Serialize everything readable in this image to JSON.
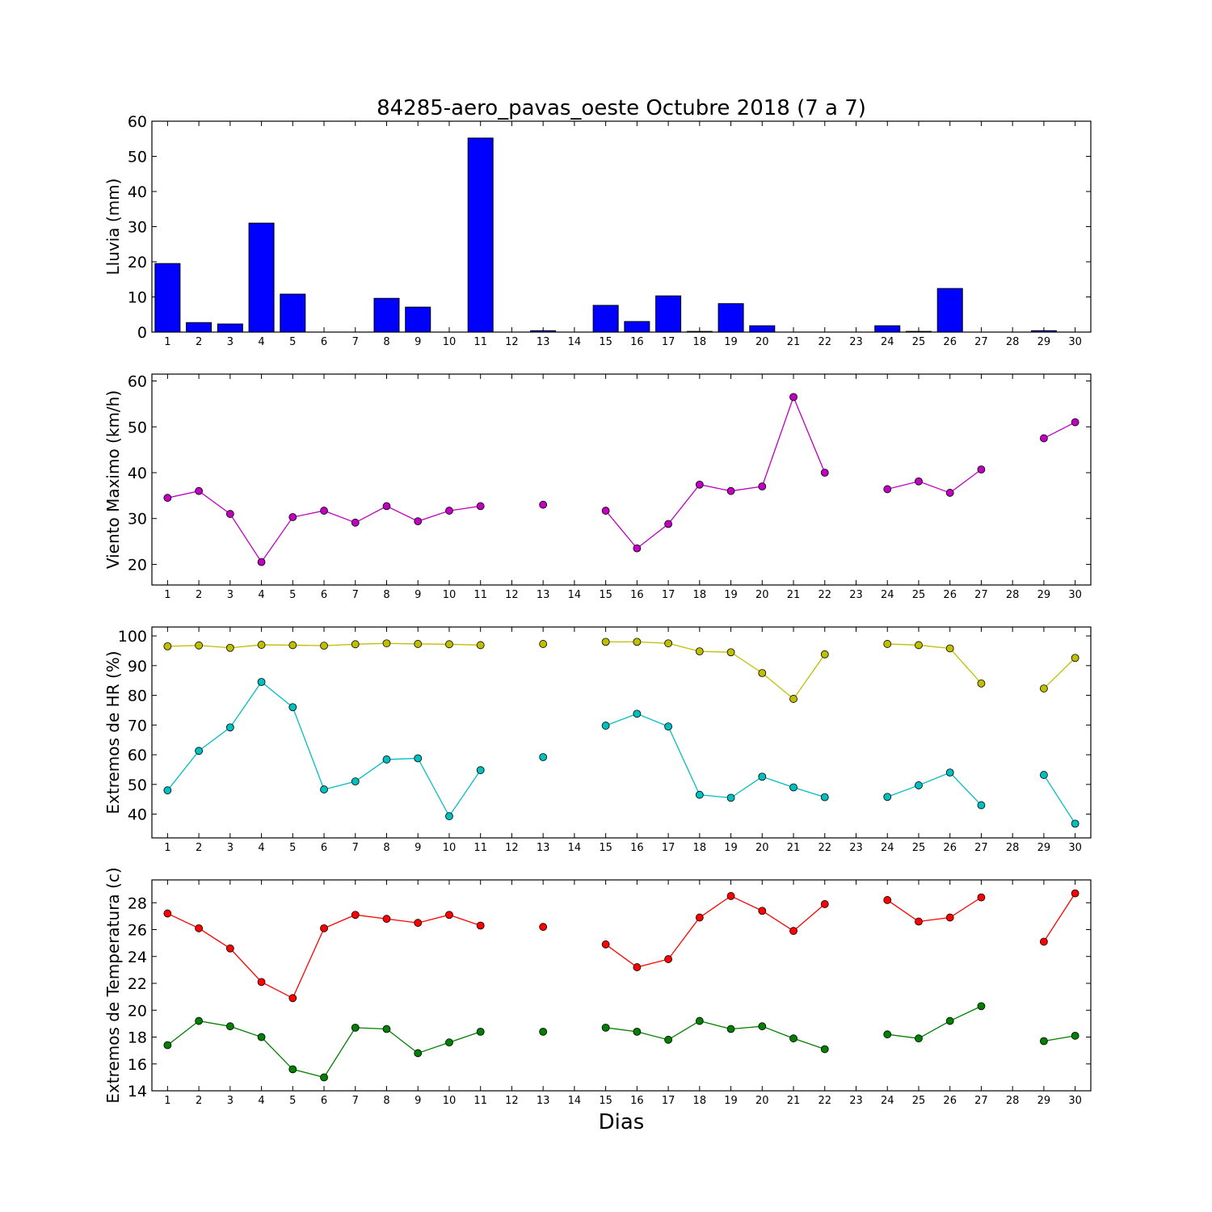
{
  "figure_title": "84285-aero_pavas_oeste Octubre 2018  (7 a 7)",
  "x_axis_label": "Dias",
  "chart_data": [
    {
      "type": "bar",
      "ylabel": "Lluvia (mm)",
      "ylim": [
        0,
        60
      ],
      "yticks": [
        0,
        10,
        20,
        30,
        40,
        50,
        60
      ],
      "x": [
        1,
        2,
        3,
        4,
        5,
        6,
        7,
        8,
        9,
        10,
        11,
        12,
        13,
        14,
        15,
        16,
        17,
        18,
        19,
        20,
        21,
        22,
        23,
        24,
        25,
        26,
        27,
        28,
        29,
        30
      ],
      "series": [
        {
          "color": "#0000ff",
          "values": [
            19.5,
            2.7,
            2.3,
            31.0,
            10.8,
            0,
            0,
            9.6,
            7.1,
            0,
            55.2,
            0,
            0.4,
            0,
            7.6,
            3.0,
            10.3,
            0.2,
            8.1,
            1.8,
            0,
            0,
            0,
            1.8,
            0.2,
            12.4,
            0,
            0,
            0.4,
            0
          ]
        }
      ]
    },
    {
      "type": "line",
      "ylabel": "Viento Maximo (km/h)",
      "ylim": [
        15.5,
        61.5
      ],
      "yticks": [
        20,
        30,
        40,
        50,
        60
      ],
      "x": [
        1,
        2,
        3,
        4,
        5,
        6,
        7,
        8,
        9,
        10,
        11,
        12,
        13,
        14,
        15,
        16,
        17,
        18,
        19,
        20,
        21,
        22,
        23,
        24,
        25,
        26,
        27,
        28,
        29,
        30
      ],
      "series": [
        {
          "color": "#bf00bf",
          "values": [
            34.5,
            36.0,
            31.0,
            20.5,
            30.3,
            31.7,
            29.1,
            32.7,
            29.4,
            31.7,
            32.7,
            null,
            33.0,
            null,
            31.7,
            23.5,
            28.8,
            37.4,
            36.0,
            37.0,
            56.5,
            40.0,
            null,
            36.4,
            38.1,
            35.6,
            40.7,
            null,
            47.5,
            51.0
          ]
        }
      ]
    },
    {
      "type": "line",
      "ylabel": "Extremos de HR (%)",
      "ylim": [
        32,
        103
      ],
      "yticks": [
        40,
        50,
        60,
        70,
        80,
        90,
        100
      ],
      "x": [
        1,
        2,
        3,
        4,
        5,
        6,
        7,
        8,
        9,
        10,
        11,
        12,
        13,
        14,
        15,
        16,
        17,
        18,
        19,
        20,
        21,
        22,
        23,
        24,
        25,
        26,
        27,
        28,
        29,
        30
      ],
      "series": [
        {
          "color": "#bfbf00",
          "values": [
            96.5,
            96.8,
            96.0,
            97.0,
            96.9,
            96.7,
            97.2,
            97.5,
            97.3,
            97.2,
            96.9,
            null,
            97.3,
            null,
            98.0,
            98.0,
            97.5,
            94.8,
            94.5,
            87.5,
            78.8,
            93.8,
            null,
            97.3,
            96.9,
            95.8,
            84.0,
            null,
            82.3,
            92.6
          ]
        },
        {
          "color": "#00bfbf",
          "values": [
            48.0,
            61.3,
            69.2,
            84.5,
            76.0,
            48.3,
            51.0,
            58.4,
            58.8,
            39.3,
            54.8,
            null,
            59.2,
            null,
            69.8,
            73.8,
            69.5,
            46.5,
            45.5,
            52.6,
            49.0,
            45.7,
            null,
            45.8,
            49.7,
            54.0,
            43.0,
            null,
            53.2,
            36.8
          ]
        }
      ]
    },
    {
      "type": "line",
      "ylabel": "Extremos de Temperatura (c)",
      "ylim": [
        14,
        29.7
      ],
      "yticks": [
        14,
        16,
        18,
        20,
        22,
        24,
        26,
        28
      ],
      "x": [
        1,
        2,
        3,
        4,
        5,
        6,
        7,
        8,
        9,
        10,
        11,
        12,
        13,
        14,
        15,
        16,
        17,
        18,
        19,
        20,
        21,
        22,
        23,
        24,
        25,
        26,
        27,
        28,
        29,
        30
      ],
      "series": [
        {
          "color": "#ff0000",
          "values": [
            27.2,
            26.1,
            24.6,
            22.1,
            20.9,
            26.1,
            27.1,
            26.8,
            26.5,
            27.1,
            26.3,
            null,
            26.2,
            null,
            24.9,
            23.2,
            23.8,
            26.9,
            28.5,
            27.4,
            25.9,
            27.9,
            null,
            28.2,
            26.6,
            26.9,
            28.4,
            null,
            25.1,
            28.7
          ]
        },
        {
          "color": "#007f00",
          "values": [
            17.4,
            19.2,
            18.8,
            18.0,
            15.6,
            15.0,
            18.7,
            18.6,
            16.8,
            17.6,
            18.4,
            null,
            18.4,
            null,
            18.7,
            18.4,
            17.8,
            19.2,
            18.6,
            18.8,
            17.9,
            17.1,
            null,
            18.2,
            17.9,
            19.2,
            20.3,
            null,
            17.7,
            18.1
          ]
        }
      ]
    }
  ]
}
